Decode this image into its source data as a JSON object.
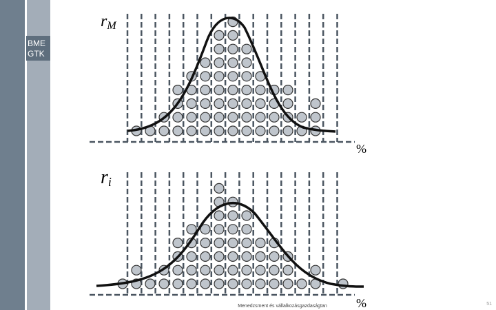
{
  "sidebar": {
    "label_line1": "BME",
    "label_line2": "GTK"
  },
  "top_panel": {
    "label": "r",
    "label_sub": "M",
    "axis_unit": "%",
    "column_counts": [
      1,
      1,
      2,
      4,
      5,
      6,
      8,
      9,
      7,
      5,
      4,
      4,
      2,
      3
    ]
  },
  "bottom_panel": {
    "label": "r",
    "label_sub": "i",
    "axis_unit": "%",
    "column_counts": [
      1,
      2,
      1,
      2,
      4,
      5,
      5,
      8,
      7,
      6,
      4,
      4,
      3,
      1,
      2,
      0,
      1
    ]
  },
  "footer": {
    "text": "Menedzsment és vállalkozásgazdaságtan",
    "page": "51"
  }
}
